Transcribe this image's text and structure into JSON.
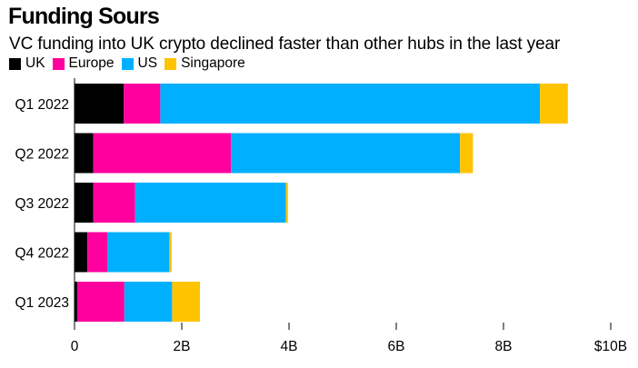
{
  "title": "Funding Sours",
  "subtitle": "VC funding into UK crypto declined faster than other hubs in the last year",
  "chart_data": {
    "type": "bar",
    "orientation": "horizontal",
    "stacked": true,
    "categories": [
      "Q1 2022",
      "Q2 2022",
      "Q3 2022",
      "Q4 2022",
      "Q1 2023"
    ],
    "series": [
      {
        "name": "UK",
        "color": "#000000",
        "values": [
          0.92,
          0.35,
          0.35,
          0.24,
          0.05
        ]
      },
      {
        "name": "Europe",
        "color": "#ff009e",
        "values": [
          0.68,
          2.57,
          0.78,
          0.37,
          0.88
        ]
      },
      {
        "name": "US",
        "color": "#00b0ff",
        "values": [
          7.08,
          4.27,
          2.81,
          1.16,
          0.89
        ]
      },
      {
        "name": "Singapore",
        "color": "#ffc300",
        "values": [
          0.52,
          0.24,
          0.04,
          0.04,
          0.52
        ]
      }
    ],
    "xlim": [
      0,
      10
    ],
    "ticks": [
      0,
      2,
      4,
      6,
      8,
      10
    ],
    "tick_labels": [
      "0",
      "2B",
      "4B",
      "6B",
      "8B",
      "$10B"
    ],
    "xlabel": "",
    "ylabel": "",
    "legend": "top-left"
  }
}
